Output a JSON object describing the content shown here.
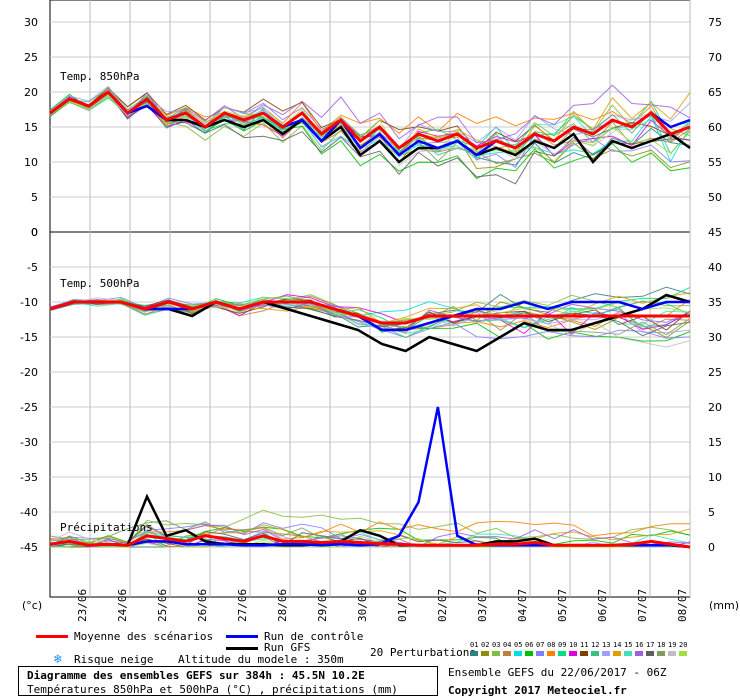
{
  "chart_data": {
    "type": "line",
    "title": "Diagramme des ensembles GEFS sur 384h : 45.5N 10.2E",
    "subtitle": "Températures 850hPa et 500hPa (°C) , précipitations (mm)",
    "x_labels": [
      "23/06",
      "24/06",
      "25/06",
      "26/06",
      "27/06",
      "28/06",
      "29/06",
      "30/06",
      "01/07",
      "02/07",
      "03/07",
      "04/07",
      "05/07",
      "06/07",
      "07/07",
      "08/07"
    ],
    "panels": [
      {
        "name": "Temp. 850hPa",
        "left_ticks": [
          30,
          25,
          20,
          15,
          10,
          5,
          0
        ],
        "right_ticks": [
          75,
          70,
          65,
          60,
          55,
          50,
          45
        ],
        "ylim": [
          0,
          30
        ],
        "series": [
          {
            "name": "Moyenne des scénarios",
            "color": "#ff0000",
            "values": [
              17,
              19,
              18,
              20,
              17,
              19,
              16,
              17,
              15,
              17,
              16,
              17,
              15,
              17,
              14,
              16,
              13,
              15,
              12,
              14,
              13,
              14,
              12,
              13,
              12,
              14,
              13,
              15,
              14,
              16,
              15,
              17,
              14,
              15
            ]
          },
          {
            "name": "Run de contrôle",
            "color": "#0000ff",
            "values": [
              17,
              19,
              18,
              20,
              17,
              18,
              16,
              17,
              15,
              17,
              16,
              17,
              15,
              16,
              13,
              16,
              12,
              14,
              11,
              13,
              12,
              13,
              11,
              13,
              12,
              14,
              13,
              15,
              14,
              16,
              15,
              17,
              15,
              16
            ]
          },
          {
            "name": "Run GFS",
            "color": "#000000",
            "values": [
              17,
              19,
              18,
              20,
              17,
              18,
              16,
              16,
              15,
              16,
              15,
              16,
              14,
              16,
              13,
              15,
              11,
              13,
              10,
              12,
              12,
              13,
              11,
              12,
              11,
              13,
              12,
              14,
              10,
              13,
              12,
              13,
              14,
              12
            ]
          }
        ]
      },
      {
        "name": "Temp. 500hPa",
        "left_ticks": [
          -5,
          -10,
          -15,
          -20,
          -25,
          -30,
          -35,
          -40,
          -45
        ],
        "right_ticks": [
          40,
          35,
          30,
          25,
          20,
          15,
          10,
          5,
          0
        ],
        "ylim": [
          -45,
          0
        ],
        "series": [
          {
            "name": "Moyenne des scénarios",
            "color": "#ff0000",
            "values": [
              -11,
              -10,
              -10,
              -10,
              -11,
              -10,
              -11,
              -10,
              -11,
              -10,
              -10,
              -10,
              -11,
              -12,
              -13,
              -13,
              -12,
              -12,
              -12,
              -12,
              -12,
              -12,
              -12,
              -12,
              -12,
              -12,
              -12,
              -12
            ]
          },
          {
            "name": "Run de contrôle",
            "color": "#0000ff",
            "values": [
              -11,
              -10,
              -10,
              -10,
              -11,
              -11,
              -11,
              -10,
              -11,
              -10,
              -10,
              -10,
              -11,
              -12,
              -14,
              -14,
              -13,
              -12,
              -11,
              -11,
              -10,
              -11,
              -10,
              -10,
              -10,
              -11,
              -10,
              -10
            ]
          },
          {
            "name": "Run GFS",
            "color": "#000000",
            "values": [
              -11,
              -10,
              -10,
              -10,
              -11,
              -11,
              -12,
              -10,
              -11,
              -10,
              -11,
              -12,
              -13,
              -14,
              -16,
              -17,
              -15,
              -16,
              -17,
              -15,
              -13,
              -14,
              -14,
              -13,
              -12,
              -11,
              -9,
              -10
            ]
          }
        ]
      },
      {
        "name": "Précipitations",
        "ylim": [
          0,
          25
        ],
        "series": [
          {
            "name": "Moyenne des scénarios",
            "color": "#ff0000",
            "values": [
              0.5,
              1,
              0.3,
              0.5,
              0.3,
              2,
              1.5,
              1,
              2,
              1.5,
              1,
              2,
              1,
              1,
              0.8,
              1,
              0.8,
              0.6,
              0.5,
              0.3,
              0.3,
              0.3,
              0.3,
              0.5,
              0.5,
              0.8,
              0.3,
              0.3,
              0.3,
              0.3,
              0.5,
              1,
              0.5,
              0
            ]
          },
          {
            "name": "Run de contrôle",
            "color": "#0000ff",
            "values": [
              0.5,
              1,
              0.3,
              0.5,
              0.3,
              1,
              1,
              0.5,
              0.5,
              0.5,
              0.3,
              0.3,
              0.5,
              0.5,
              0.3,
              0.5,
              0.3,
              0.5,
              2,
              8,
              25,
              2,
              0.3,
              0.3,
              0.3,
              0.3,
              0.3,
              0.3,
              0.3,
              0.3,
              0.3,
              0.3,
              0.3,
              0
            ]
          },
          {
            "name": "Run GFS",
            "color": "#000000",
            "values": [
              0.5,
              1,
              0.3,
              0.5,
              0.3,
              9,
              2,
              3,
              1,
              0.5,
              0.5,
              0.5,
              0.3,
              0.3,
              0.5,
              1,
              3,
              2,
              0.3,
              0.3,
              0.3,
              0.3,
              0.3,
              1,
              1,
              1.5,
              0.3,
              0.3,
              0.3,
              0.3,
              0.3,
              0.3,
              0.3,
              0
            ]
          }
        ]
      }
    ],
    "left_unit": "(°c)",
    "right_unit": "(mm)"
  },
  "legend": {
    "mean": "Moyenne des scénarios",
    "control": "Run de contrôle",
    "gfs": "Run GFS",
    "snow": "Risque neige",
    "altitude": "Altitude du modele : 350m",
    "perturbations": "20 Perturbations",
    "pert_numbers": [
      "01",
      "02",
      "03",
      "04",
      "05",
      "06",
      "07",
      "08",
      "09",
      "10",
      "11",
      "12",
      "13",
      "14",
      "15",
      "16",
      "17",
      "18",
      "19",
      "20"
    ],
    "pert_colors": [
      "#2f7f7f",
      "#8f8f00",
      "#7fbf3f",
      "#bf7f3f",
      "#00dfdf",
      "#00bf00",
      "#7f7fff",
      "#ff7f00",
      "#00df7f",
      "#df00df",
      "#7f3f00",
      "#3fbf7f",
      "#9f9fff",
      "#df9f00",
      "#3fdfbf",
      "#9f5fdf",
      "#5f5f5f",
      "#7f9f5f",
      "#bfbfbf",
      "#9fdf3f"
    ]
  },
  "footer": {
    "ensemble": "Ensemble GEFS du 22/06/2017 - 06Z",
    "copyright": "Copyright 2017 Meteociel.fr"
  },
  "colors": {
    "mean": "#ff0000",
    "control": "#0000ff",
    "gfs": "#000000",
    "snow": "#1e90ff"
  }
}
